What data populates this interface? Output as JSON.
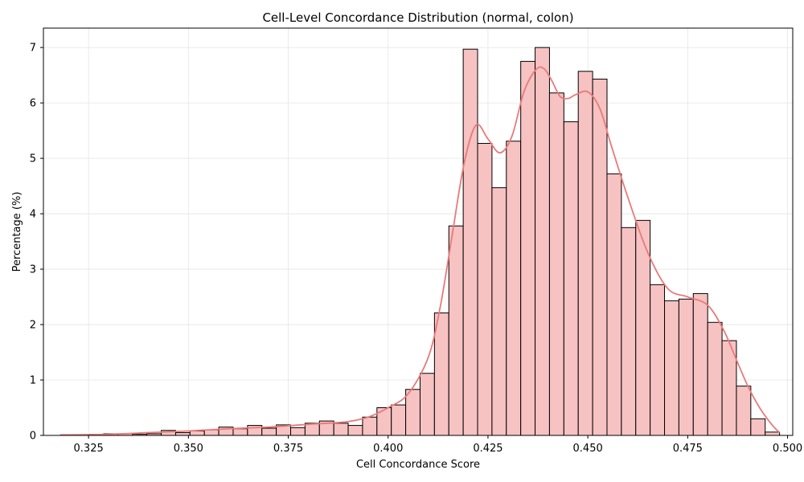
{
  "chart_data": {
    "type": "bar",
    "title": "Cell-Level Concordance Distribution (normal, colon)",
    "xlabel": "Cell Concordance Score",
    "ylabel": "Percentage (%)",
    "xlim": [
      0.3137,
      0.5013
    ],
    "ylim": [
      0,
      7.35
    ],
    "x_ticks": [
      0.325,
      0.35,
      0.375,
      0.4,
      0.425,
      0.45,
      0.475,
      0.5
    ],
    "x_tick_labels": [
      "0.325",
      "0.350",
      "0.375",
      "0.400",
      "0.425",
      "0.450",
      "0.475",
      "0.500"
    ],
    "y_ticks": [
      0,
      1,
      2,
      3,
      4,
      5,
      6,
      7
    ],
    "y_tick_labels": [
      "0",
      "1",
      "2",
      "3",
      "4",
      "5",
      "6",
      "7"
    ],
    "grid": true,
    "bin_start": 0.318,
    "bin_width": 0.0036,
    "values": [
      0.01,
      0.01,
      0.02,
      0.03,
      0.03,
      0.02,
      0.03,
      0.09,
      0.05,
      0.08,
      0.1,
      0.15,
      0.12,
      0.18,
      0.13,
      0.19,
      0.14,
      0.22,
      0.26,
      0.22,
      0.18,
      0.33,
      0.5,
      0.55,
      0.83,
      1.12,
      2.21,
      3.78,
      6.97,
      5.27,
      4.47,
      5.31,
      6.75,
      7.0,
      6.18,
      5.66,
      6.57,
      6.43,
      4.72,
      3.75,
      3.88,
      2.72,
      2.43,
      2.46,
      2.56,
      2.04,
      1.71,
      0.89,
      0.3,
      0.06
    ],
    "kde": {
      "x": [
        0.318,
        0.33,
        0.34,
        0.35,
        0.36,
        0.37,
        0.38,
        0.385,
        0.39,
        0.395,
        0.4,
        0.405,
        0.41,
        0.413,
        0.416,
        0.419,
        0.422,
        0.425,
        0.428,
        0.431,
        0.434,
        0.437,
        0.439,
        0.441,
        0.443,
        0.445,
        0.447,
        0.45,
        0.453,
        0.456,
        0.46,
        0.465,
        0.47,
        0.475,
        0.48,
        0.484,
        0.487,
        0.49,
        0.493,
        0.496,
        0.498
      ],
      "y": [
        0.01,
        0.02,
        0.05,
        0.08,
        0.12,
        0.15,
        0.2,
        0.22,
        0.25,
        0.33,
        0.5,
        0.75,
        1.4,
        2.3,
        3.6,
        4.9,
        5.6,
        5.35,
        5.1,
        5.4,
        6.2,
        6.6,
        6.62,
        6.4,
        6.12,
        6.08,
        6.15,
        6.2,
        5.9,
        5.2,
        4.3,
        3.3,
        2.65,
        2.5,
        2.35,
        1.9,
        1.4,
        0.9,
        0.5,
        0.2,
        0.05
      ]
    },
    "colors": {
      "bar_fill": "#f7c2c2",
      "bar_edge": "#000000",
      "kde_line": "#e87a7a",
      "grid": "#e5e5e5"
    }
  }
}
